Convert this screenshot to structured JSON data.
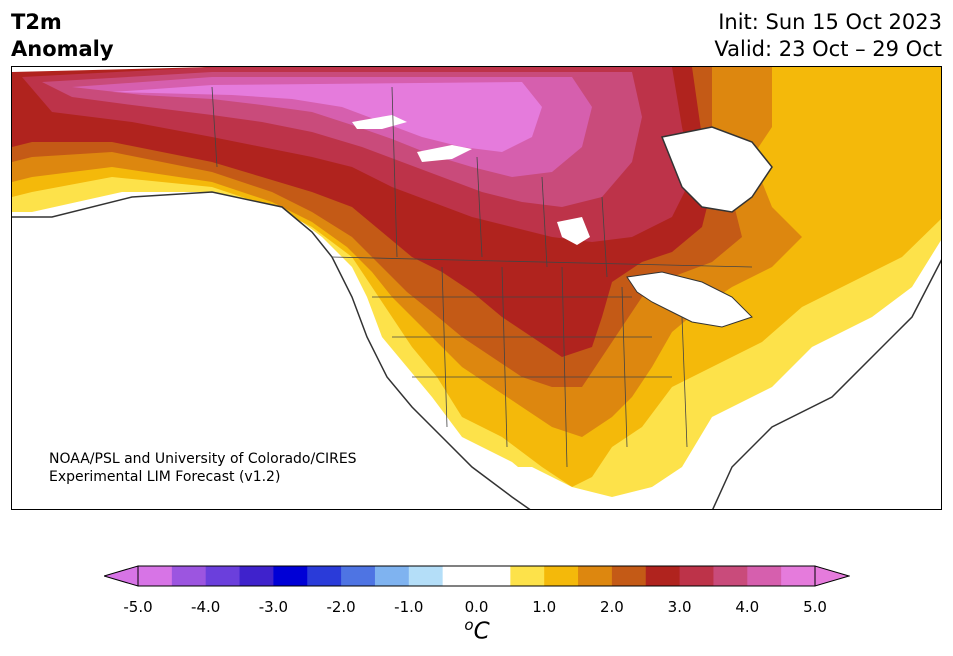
{
  "header": {
    "title": "T2m\nAnomaly",
    "init_line": "Init: Sun 15 Oct 2023",
    "valid_line": "Valid: 23 Oct – 29 Oct"
  },
  "map": {
    "credit_line1": "NOAA/PSL and University of Colorado/CIRES",
    "credit_line2": "Experimental LIM Forecast (v1.2)"
  },
  "colorbar": {
    "unit_superscript": "o",
    "unit_base": "C",
    "tick_labels": [
      "-5.0",
      "-4.0",
      "-3.0",
      "-2.0",
      "-1.0",
      "0.0",
      "1.0",
      "2.0",
      "3.0",
      "4.0",
      "5.0"
    ],
    "colors": [
      "#d774e6",
      "#9c55e0",
      "#6b3fdc",
      "#3f22cc",
      "#0000d6",
      "#2a3bd9",
      "#4e74e3",
      "#7fb3f0",
      "#b4def8",
      "#ffffff",
      "#ffffff",
      "#fde24a",
      "#f4b90a",
      "#dd870f",
      "#c45a16",
      "#b0231e",
      "#bd3349",
      "#c94b7b",
      "#d65fae",
      "#e57bdc"
    ],
    "min_arrow_color": "#d774e6",
    "max_arrow_color": "#e57bdc"
  }
}
